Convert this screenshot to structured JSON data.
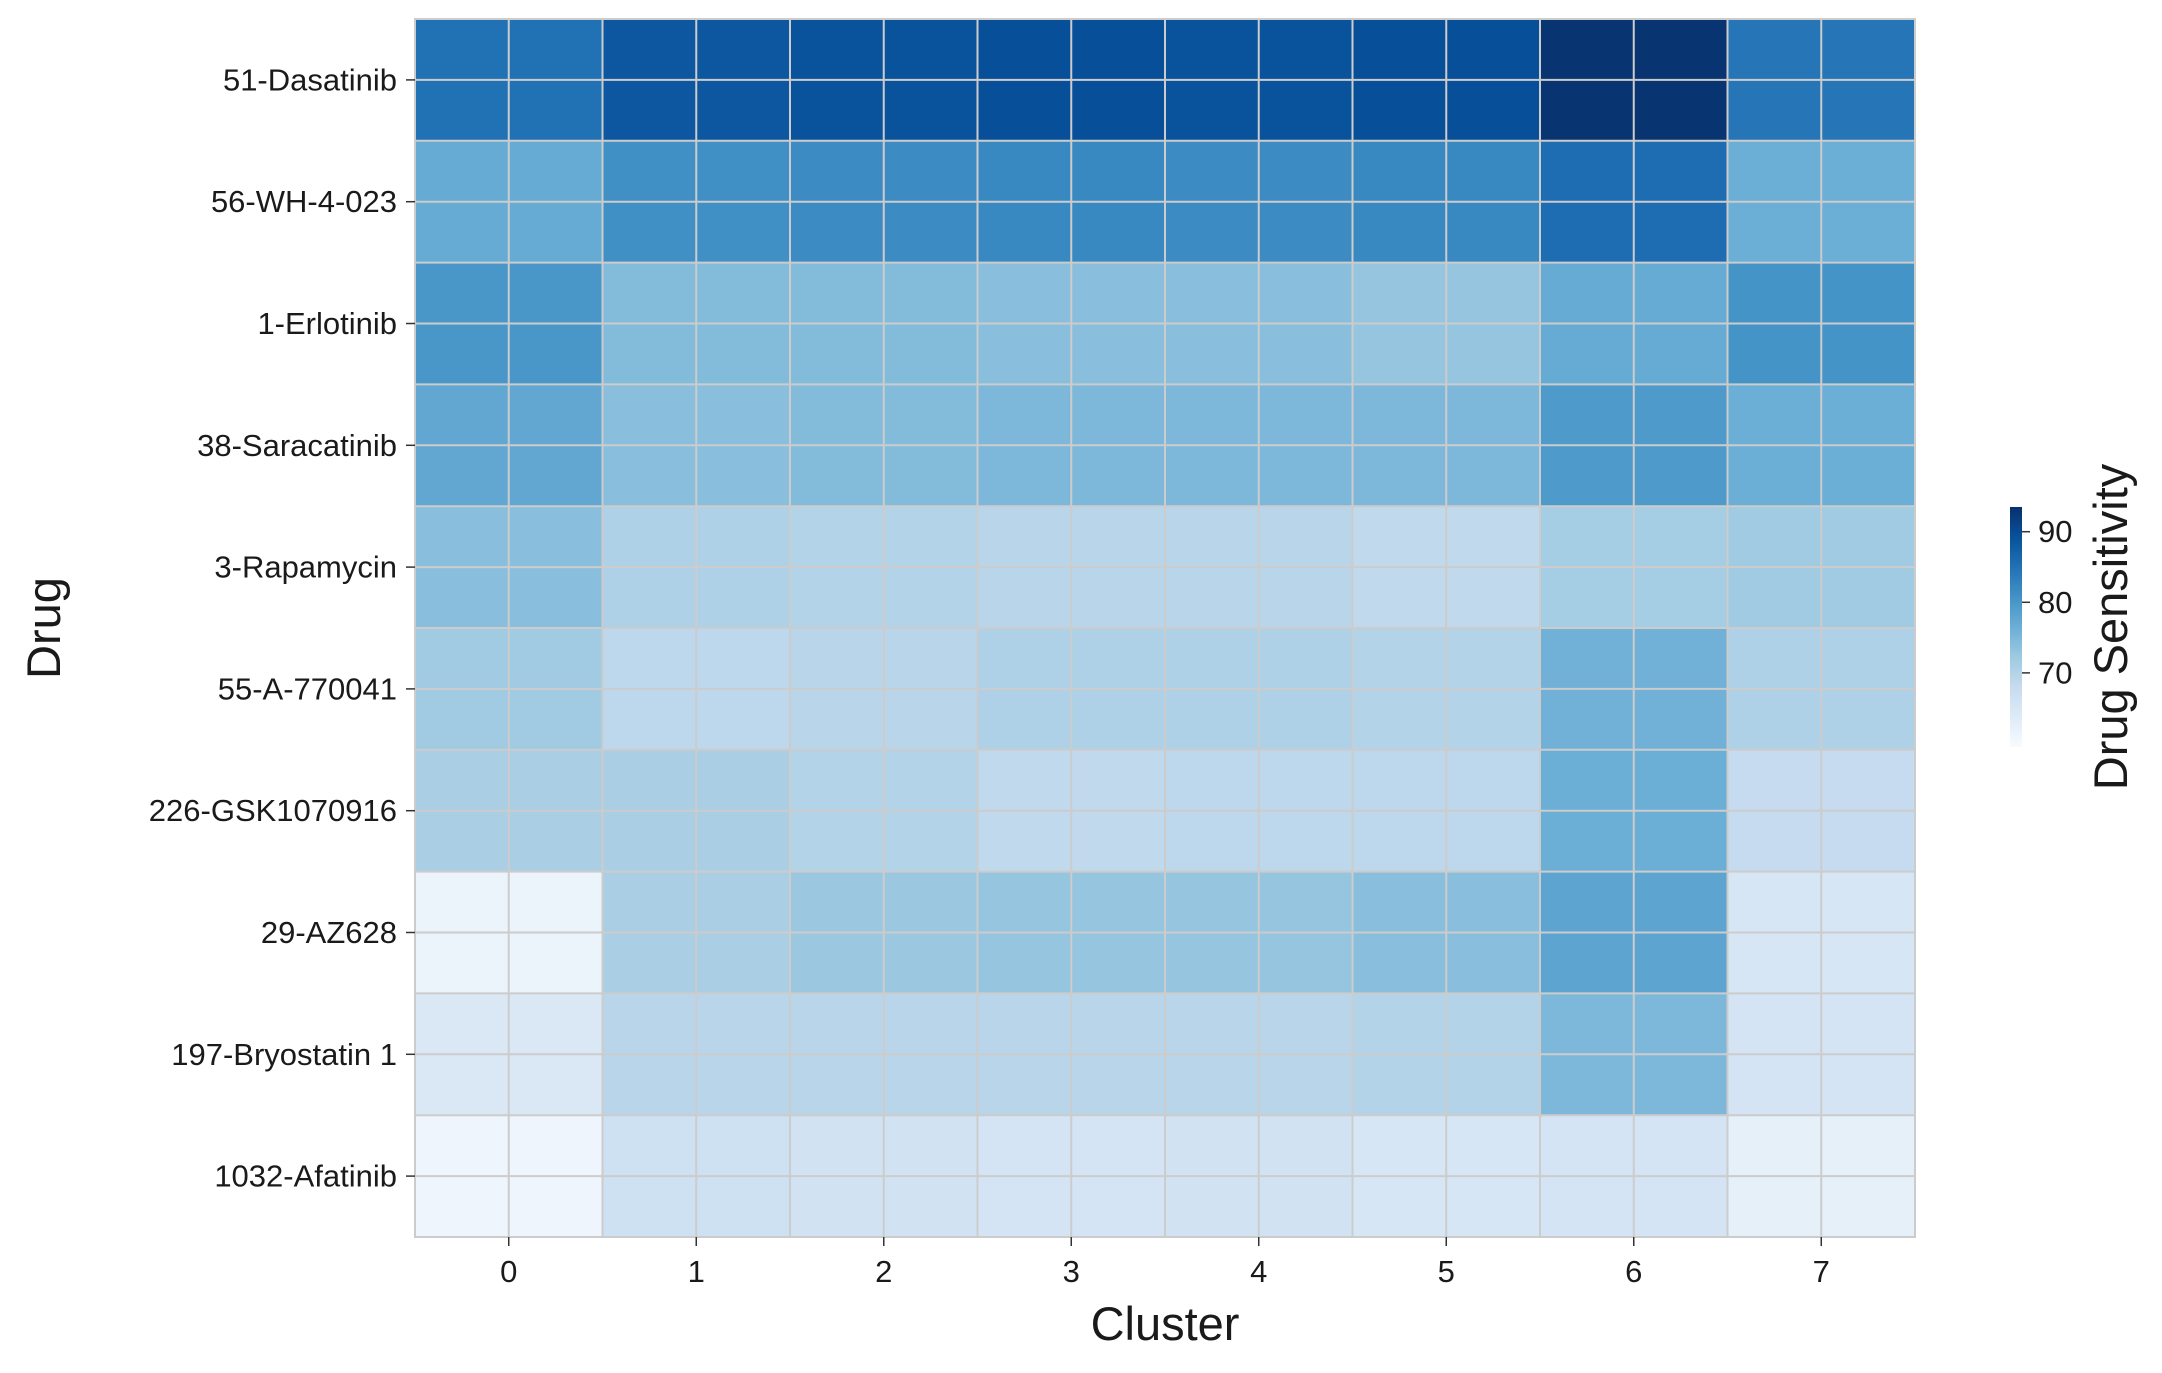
{
  "chart_data": {
    "type": "heatmap",
    "title": "",
    "xlabel": "Cluster",
    "ylabel": "Drug",
    "x_categories": [
      "0",
      "1",
      "2",
      "3",
      "4",
      "5",
      "6",
      "7"
    ],
    "y_categories": [
      "51-Dasatinib",
      "56-WH-4-023",
      "1-Erlotinib",
      "38-Saracatinib",
      "3-Rapamycin",
      "55-A-770041",
      "226-GSK1070916",
      "29-AZ628",
      "197-Bryostatin 1",
      "1032-Afatinib"
    ],
    "values": [
      [
        85.0,
        88.5,
        89.0,
        89.5,
        89.0,
        89.5,
        93.0,
        84.5
      ],
      [
        77.0,
        81.0,
        81.5,
        82.0,
        81.5,
        82.0,
        85.5,
        76.5
      ],
      [
        80.0,
        74.5,
        74.5,
        74.0,
        74.0,
        73.0,
        77.0,
        80.5
      ],
      [
        77.5,
        74.0,
        74.5,
        75.0,
        75.0,
        75.0,
        79.5,
        76.5
      ],
      [
        74.0,
        70.5,
        70.0,
        69.5,
        69.5,
        68.5,
        71.5,
        72.0
      ],
      [
        72.0,
        69.0,
        69.5,
        70.5,
        70.5,
        70.0,
        76.0,
        70.5
      ],
      [
        71.0,
        71.0,
        70.0,
        68.5,
        69.0,
        69.0,
        76.5,
        68.0
      ],
      [
        61.5,
        71.0,
        72.5,
        73.0,
        73.0,
        74.0,
        78.0,
        65.0
      ],
      [
        64.5,
        69.5,
        69.5,
        69.5,
        69.5,
        70.0,
        75.0,
        65.5
      ],
      [
        61.0,
        66.5,
        66.0,
        65.5,
        66.0,
        65.0,
        65.5,
        62.5
      ]
    ],
    "colorbar": {
      "label": "Drug Sensitivity",
      "vmin": 59.5,
      "vmax": 93.5,
      "ticks": [
        70,
        80,
        90
      ],
      "tick_labels": [
        "70",
        "80",
        "90"
      ],
      "colormap": "Blues"
    },
    "grid": true,
    "gridline_color": "#cccccc"
  }
}
